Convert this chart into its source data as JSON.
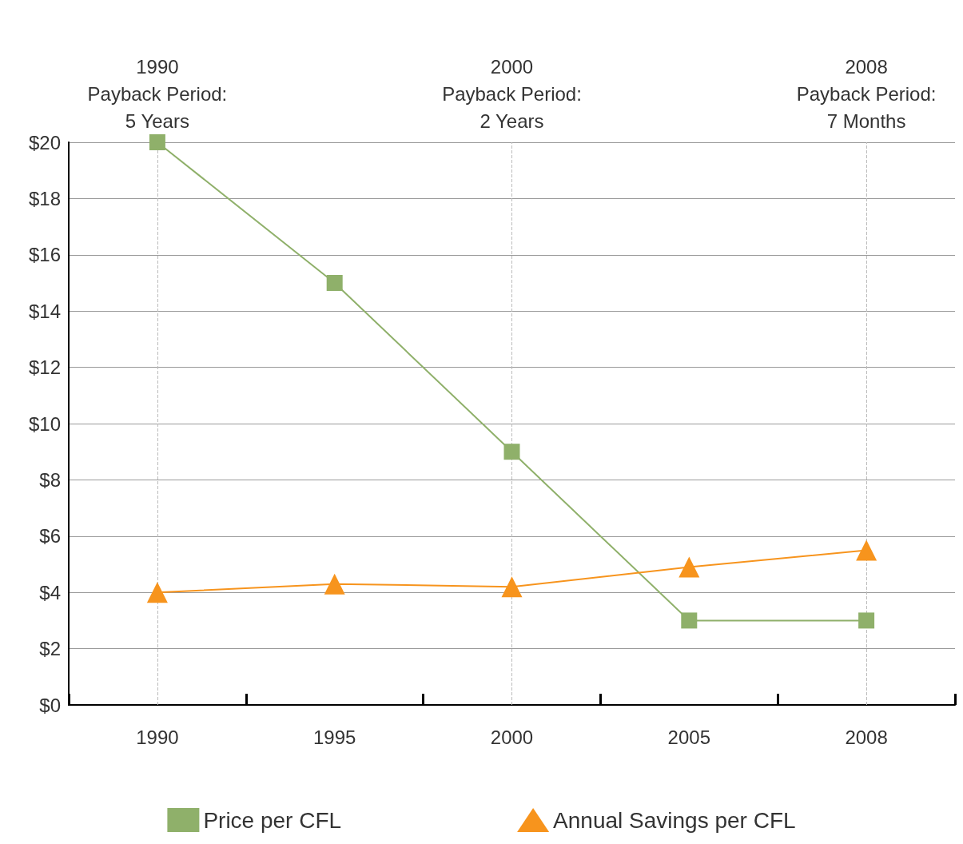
{
  "chart_data": {
    "type": "line",
    "categories": [
      "1990",
      "1995",
      "2000",
      "2005",
      "2008"
    ],
    "series": [
      {
        "name": "Price per CFL",
        "color": "#8fb06a",
        "marker": "square",
        "values": [
          20,
          15,
          9,
          3,
          3
        ]
      },
      {
        "name": "Annual Savings per CFL",
        "color": "#f7941d",
        "marker": "triangle",
        "values": [
          4.0,
          4.3,
          4.2,
          4.9,
          5.5
        ]
      }
    ],
    "ylim": [
      0,
      20
    ],
    "yticks": [
      {
        "value": 0,
        "label": "$0"
      },
      {
        "value": 2,
        "label": "$2"
      },
      {
        "value": 4,
        "label": "$4"
      },
      {
        "value": 6,
        "label": "$6"
      },
      {
        "value": 8,
        "label": "$8"
      },
      {
        "value": 10,
        "label": "$10"
      },
      {
        "value": 12,
        "label": "$12"
      },
      {
        "value": 14,
        "label": "$14"
      },
      {
        "value": 16,
        "label": "$16"
      },
      {
        "value": 18,
        "label": "$18"
      },
      {
        "value": 20,
        "label": "$20"
      }
    ],
    "ref_lines": [
      {
        "axis": "x",
        "value": "1990",
        "label": "1990\nPayback Period:\n5 Years",
        "color": "#bbbbbb",
        "line_style": "dashed"
      },
      {
        "axis": "x",
        "value": "2000",
        "label": "2000\nPayback Period:\n2 Years",
        "color": "#bbbbbb",
        "line_style": "dashed"
      },
      {
        "axis": "x",
        "value": "2008",
        "label": "2008\nPayback Period:\n7 Months",
        "color": "#bbbbbb",
        "line_style": "dashed"
      }
    ],
    "grid": "y",
    "legend": "bottom",
    "line_style": "solid"
  }
}
